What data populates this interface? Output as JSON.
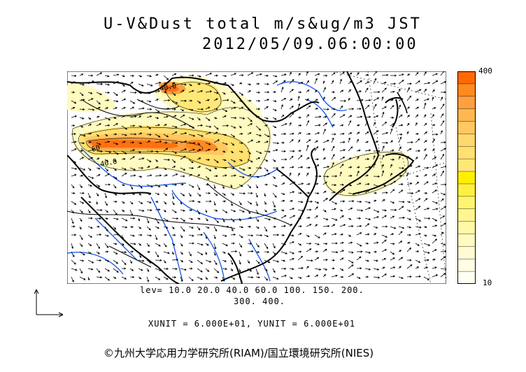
{
  "title": {
    "line1": "U-V&Dust total m/s&ug/m3 JST",
    "line2": "2012/05/09.06:00:00"
  },
  "colorbar": {
    "max_label": "400",
    "min_label": "10",
    "colors": [
      "#ff6a00",
      "#ff8a20",
      "#ffa040",
      "#ffb850",
      "#ffc860",
      "#ffd870",
      "#ffe070",
      "#ffe878",
      "#fff000",
      "#fff040",
      "#fff470",
      "#fff690",
      "#fff8a8",
      "#fffac0",
      "#fffcd4",
      "#fffde4",
      "#fffef2"
    ]
  },
  "levels": {
    "line1": "lev= 10.0 20.0 40.0 60.0 100. 150. 200.",
    "line2": "300. 400."
  },
  "units_text": "XUNIT = 6.000E+01, YUNIT = 6.000E+01",
  "copyright": "©九州大学応用力学研究所(RIAM)/国立環境研究所(NIES)",
  "contour_labels": [
    "40.0",
    "60",
    "40.0"
  ],
  "map_colors": {
    "coast": "#000000",
    "rivers": "#1f5ff0",
    "dust_low": "#fffac0",
    "dust_mid": "#ffe070",
    "dust_high": "#ff8a20",
    "dust_peak": "#ff5a00"
  }
}
